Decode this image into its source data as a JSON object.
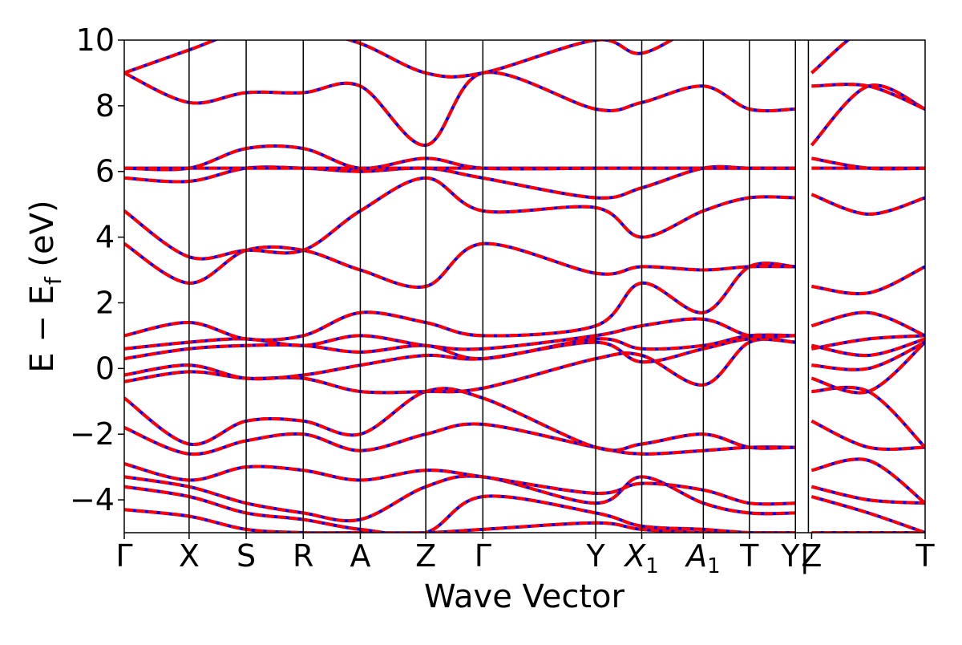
{
  "chart_data": {
    "type": "line",
    "title": "",
    "xlabel": "Wave Vector",
    "ylabel": "E − E_f (eV)",
    "ylabel_parts": {
      "main": "E − E",
      "sub": "f",
      "unit": " (eV)"
    },
    "ylim": [
      -5,
      10
    ],
    "xlim": [
      0,
      12.35
    ],
    "grid": false,
    "legend": "none",
    "colors": {
      "solid": "#ff0000",
      "dashed": "#0000ff",
      "divider": "#000000"
    },
    "ytick_values": [
      -4,
      -2,
      0,
      2,
      4,
      6,
      8,
      10
    ],
    "ytick_labels": [
      "−4",
      "−2",
      "0",
      "2",
      "4",
      "6",
      "8",
      "10"
    ],
    "kpoints": [
      {
        "label": "Γ",
        "x": 0.0
      },
      {
        "label": "X",
        "x": 1.0
      },
      {
        "label": "S",
        "x": 1.88
      },
      {
        "label": "R",
        "x": 2.76
      },
      {
        "label": "A",
        "x": 3.64
      },
      {
        "label": "Z",
        "x": 4.65
      },
      {
        "label": "Γ",
        "x": 5.53
      },
      {
        "label": "Y",
        "x": 7.27
      },
      {
        "label": "X",
        "sub": "1",
        "x": 7.98
      },
      {
        "label": "A",
        "sub": "1",
        "x": 8.93
      },
      {
        "label": "T",
        "x": 9.64
      },
      {
        "label": "Y|",
        "x": 10.35
      },
      {
        "label": "Z",
        "x": 10.6
      },
      {
        "label": "T",
        "x": 12.35
      }
    ],
    "segment_break_after": 10.35,
    "bands_left": [
      [
        -4.3,
        -4.5,
        -4.9,
        -5.0,
        -5.0,
        -5.0,
        -4.9,
        -4.7,
        -4.9,
        -5.0,
        -5.0,
        -5.0
      ],
      [
        -3.6,
        -3.9,
        -4.4,
        -4.6,
        -4.9,
        -5.0,
        -3.9,
        -4.4,
        -4.8,
        -4.9,
        -5.0,
        -5.0
      ],
      [
        -3.3,
        -3.6,
        -4.1,
        -4.4,
        -4.6,
        -3.6,
        -3.3,
        -4.1,
        -3.3,
        -4.1,
        -4.4,
        -4.4
      ],
      [
        -2.9,
        -3.4,
        -3.0,
        -3.1,
        -3.4,
        -3.1,
        -3.3,
        -3.8,
        -3.5,
        -3.7,
        -4.1,
        -4.1
      ],
      [
        -1.8,
        -2.6,
        -2.2,
        -2.0,
        -2.5,
        -2.0,
        -1.7,
        -2.4,
        -2.6,
        -2.5,
        -2.4,
        -2.4
      ],
      [
        -0.9,
        -2.3,
        -1.6,
        -1.6,
        -2.0,
        -0.7,
        -0.9,
        -2.4,
        -2.3,
        -2.0,
        -2.4,
        -2.4
      ],
      [
        -0.4,
        -0.1,
        -0.3,
        -0.3,
        -0.7,
        -0.7,
        -0.6,
        0.3,
        0.4,
        -0.5,
        0.8,
        0.8
      ],
      [
        -0.2,
        0.1,
        -0.3,
        -0.2,
        0.1,
        0.4,
        0.3,
        0.8,
        0.2,
        0.6,
        0.9,
        0.8
      ],
      [
        0.3,
        0.6,
        0.7,
        0.7,
        0.5,
        0.7,
        0.3,
        0.9,
        0.6,
        0.7,
        1.0,
        1.0
      ],
      [
        0.6,
        0.8,
        0.9,
        0.7,
        1.0,
        0.7,
        0.6,
        1.0,
        1.3,
        1.5,
        1.0,
        1.0
      ],
      [
        1.0,
        1.4,
        0.9,
        1.0,
        1.7,
        1.4,
        1.0,
        1.3,
        2.6,
        1.7,
        3.1,
        3.1
      ],
      [
        3.8,
        2.6,
        3.6,
        3.6,
        3.0,
        2.5,
        3.8,
        2.9,
        3.1,
        3.0,
        3.1,
        3.1
      ],
      [
        4.8,
        3.4,
        3.6,
        3.6,
        4.8,
        5.8,
        4.8,
        4.9,
        4.0,
        4.8,
        5.2,
        5.2
      ],
      [
        5.8,
        5.7,
        6.1,
        6.1,
        6.0,
        6.1,
        5.8,
        5.2,
        5.5,
        6.1,
        6.1,
        6.1
      ],
      [
        6.1,
        6.1,
        6.1,
        6.1,
        6.1,
        6.1,
        6.1,
        6.1,
        6.1,
        6.1,
        6.1,
        6.1
      ],
      [
        6.1,
        6.1,
        6.7,
        6.7,
        6.1,
        6.4,
        6.1,
        6.1,
        6.1,
        6.1,
        6.1,
        6.1
      ],
      [
        9.0,
        8.1,
        8.4,
        8.4,
        8.6,
        6.8,
        9.0,
        7.9,
        8.1,
        8.6,
        7.9,
        7.9
      ],
      [
        9.0,
        9.7,
        10.3,
        10.3,
        9.9,
        9.0,
        9.0,
        10.0,
        9.6,
        10.5,
        10.5,
        10.5
      ]
    ],
    "bands_right": [
      [
        -5.0,
        -5.0,
        -5.0
      ],
      [
        -3.9,
        -4.4,
        -5.0
      ],
      [
        -3.6,
        -4.0,
        -4.1
      ],
      [
        -3.1,
        -2.8,
        -4.1
      ],
      [
        -1.6,
        -2.4,
        -2.4
      ],
      [
        -0.7,
        -0.7,
        -2.4
      ],
      [
        -0.3,
        -0.7,
        0.8
      ],
      [
        0.1,
        0.0,
        0.8
      ],
      [
        0.7,
        0.4,
        0.9
      ],
      [
        0.6,
        0.9,
        1.0
      ],
      [
        1.3,
        1.7,
        1.0
      ],
      [
        2.5,
        2.3,
        3.1
      ],
      [
        5.3,
        4.7,
        5.2
      ],
      [
        6.1,
        6.1,
        6.1
      ],
      [
        6.4,
        6.1,
        6.1
      ],
      [
        6.8,
        8.6,
        7.9
      ],
      [
        8.6,
        8.6,
        7.9
      ],
      [
        9.0,
        10.4,
        10.4
      ]
    ]
  }
}
